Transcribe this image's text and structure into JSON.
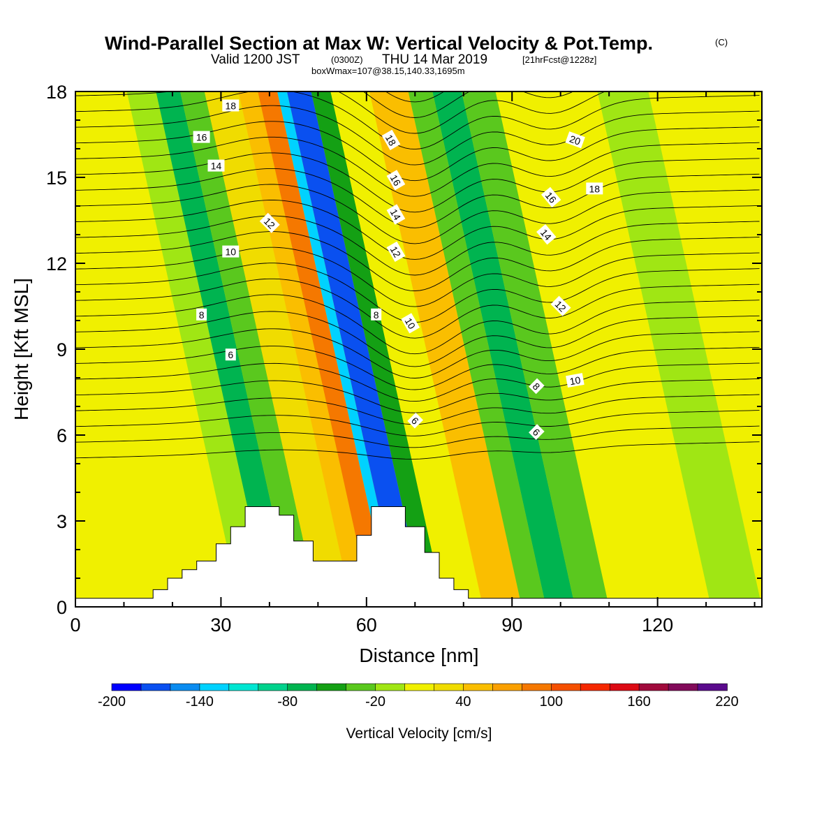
{
  "header": {
    "title": "Wind-Parallel Section at Max W: Vertical Velocity & Pot.Temp.",
    "title_mark": "(C)",
    "valid_prefix": "Valid 1200 JST",
    "valid_z": "(0300Z)",
    "valid_date": "THU 14 Mar 2019",
    "forecast": "[21hrFcst@1228z]",
    "box_info": "boxWmax=107@38.15,140.33,1695m"
  },
  "chart_data": {
    "type": "heatmap",
    "xlabel": "Distance [nm]",
    "ylabel": "Height [Kft MSL]",
    "xlim": [
      0,
      141.5
    ],
    "ylim": [
      0,
      18
    ],
    "x_ticks": [
      "0",
      "30",
      "60",
      "90",
      "120"
    ],
    "y_ticks": [
      "0",
      "3",
      "6",
      "9",
      "12",
      "15",
      "18"
    ],
    "colorbar": {
      "label": "Vertical Velocity [cm/s]",
      "tick_labels": [
        "-200",
        "-140",
        "-80",
        "-20",
        "40",
        "100",
        "160",
        "220"
      ],
      "levels": [
        -200,
        -180,
        -160,
        -140,
        -120,
        -100,
        -80,
        -60,
        -40,
        -20,
        0,
        20,
        40,
        60,
        80,
        100,
        120,
        140,
        160,
        180,
        200,
        220
      ],
      "colors": [
        "#0000ff",
        "#0a50f0",
        "#0a8cf0",
        "#00d2ff",
        "#00e6d2",
        "#00d28c",
        "#00b450",
        "#14a014",
        "#5ac81e",
        "#a0e614",
        "#f0f000",
        "#f0dc00",
        "#fabe00",
        "#faa000",
        "#f57800",
        "#f55000",
        "#f52800",
        "#dc0a14",
        "#a00a3c",
        "#820a5a",
        "#5a0a8c"
      ]
    },
    "vertical_velocity_bands": [
      {
        "x": 0,
        "w_cm_s": 5
      },
      {
        "x": 18,
        "w_cm_s": 12
      },
      {
        "x": 28,
        "w_cm_s": 0
      },
      {
        "x": 34,
        "w_cm_s": -20
      },
      {
        "x": 40,
        "w_cm_s": -65
      },
      {
        "x": 45,
        "w_cm_s": -30
      },
      {
        "x": 50,
        "w_cm_s": 25
      },
      {
        "x": 57,
        "w_cm_s": 55
      },
      {
        "x": 61,
        "w_cm_s": 80
      },
      {
        "x": 65,
        "w_cm_s": -130
      },
      {
        "x": 67,
        "w_cm_s": -180
      },
      {
        "x": 72,
        "w_cm_s": -60
      },
      {
        "x": 76,
        "w_cm_s": 15
      },
      {
        "x": 84,
        "w_cm_s": 45
      },
      {
        "x": 92,
        "w_cm_s": -40
      },
      {
        "x": 97,
        "w_cm_s": -70
      },
      {
        "x": 103,
        "w_cm_s": -25
      },
      {
        "x": 110,
        "w_cm_s": 5
      },
      {
        "x": 124,
        "w_cm_s": 15
      },
      {
        "x": 131,
        "w_cm_s": -15
      },
      {
        "x": 141.5,
        "w_cm_s": -15
      }
    ],
    "terrain": {
      "x": [
        0,
        16,
        16,
        19,
        19,
        22,
        22,
        25,
        25,
        29,
        29,
        32,
        32,
        35,
        35,
        42,
        42,
        45,
        45,
        49,
        49,
        58,
        58,
        61,
        61,
        68,
        68,
        72,
        72,
        75,
        75,
        78,
        78,
        81,
        81,
        84,
        84,
        141.5
      ],
      "height_kft": [
        0.3,
        0.3,
        0.6,
        0.6,
        1.0,
        1.0,
        1.3,
        1.3,
        1.6,
        1.6,
        2.2,
        2.2,
        2.8,
        2.8,
        3.5,
        3.5,
        3.2,
        3.2,
        2.3,
        2.3,
        1.6,
        1.6,
        2.5,
        2.5,
        3.5,
        3.5,
        2.8,
        2.8,
        1.9,
        1.9,
        1.0,
        1.0,
        0.6,
        0.6,
        0.3,
        0.3,
        0.3,
        0.3
      ]
    },
    "contour_labels": [
      {
        "text": "18",
        "x": 32,
        "y": 17.5,
        "rot": 0
      },
      {
        "text": "16",
        "x": 26,
        "y": 16.4,
        "rot": 0
      },
      {
        "text": "14",
        "x": 29,
        "y": 15.4,
        "rot": 0
      },
      {
        "text": "12",
        "x": 40,
        "y": 13.4,
        "rot": 45
      },
      {
        "text": "10",
        "x": 32,
        "y": 12.4,
        "rot": 0
      },
      {
        "text": "8",
        "x": 26,
        "y": 10.2,
        "rot": 0
      },
      {
        "text": "6",
        "x": 32,
        "y": 8.8,
        "rot": 0
      },
      {
        "text": "18",
        "x": 65,
        "y": 16.3,
        "rot": 60
      },
      {
        "text": "16",
        "x": 66,
        "y": 14.9,
        "rot": 60
      },
      {
        "text": "14",
        "x": 66,
        "y": 13.7,
        "rot": 60
      },
      {
        "text": "12",
        "x": 66,
        "y": 12.4,
        "rot": 60
      },
      {
        "text": "8",
        "x": 62,
        "y": 10.2,
        "rot": 0
      },
      {
        "text": "10",
        "x": 69,
        "y": 9.9,
        "rot": 60
      },
      {
        "text": "6",
        "x": 70,
        "y": 6.5,
        "rot": 45
      },
      {
        "text": "20",
        "x": 103,
        "y": 16.3,
        "rot": 20
      },
      {
        "text": "18",
        "x": 107,
        "y": 14.6,
        "rot": 0
      },
      {
        "text": "16",
        "x": 98,
        "y": 14.3,
        "rot": 50
      },
      {
        "text": "14",
        "x": 97,
        "y": 13.0,
        "rot": 50
      },
      {
        "text": "12",
        "x": 100,
        "y": 10.5,
        "rot": 45
      },
      {
        "text": "8",
        "x": 95,
        "y": 7.7,
        "rot": 45
      },
      {
        "text": "10",
        "x": 103,
        "y": 7.9,
        "rot": -10
      },
      {
        "text": "6",
        "x": 95,
        "y": 6.1,
        "rot": 45
      }
    ]
  }
}
